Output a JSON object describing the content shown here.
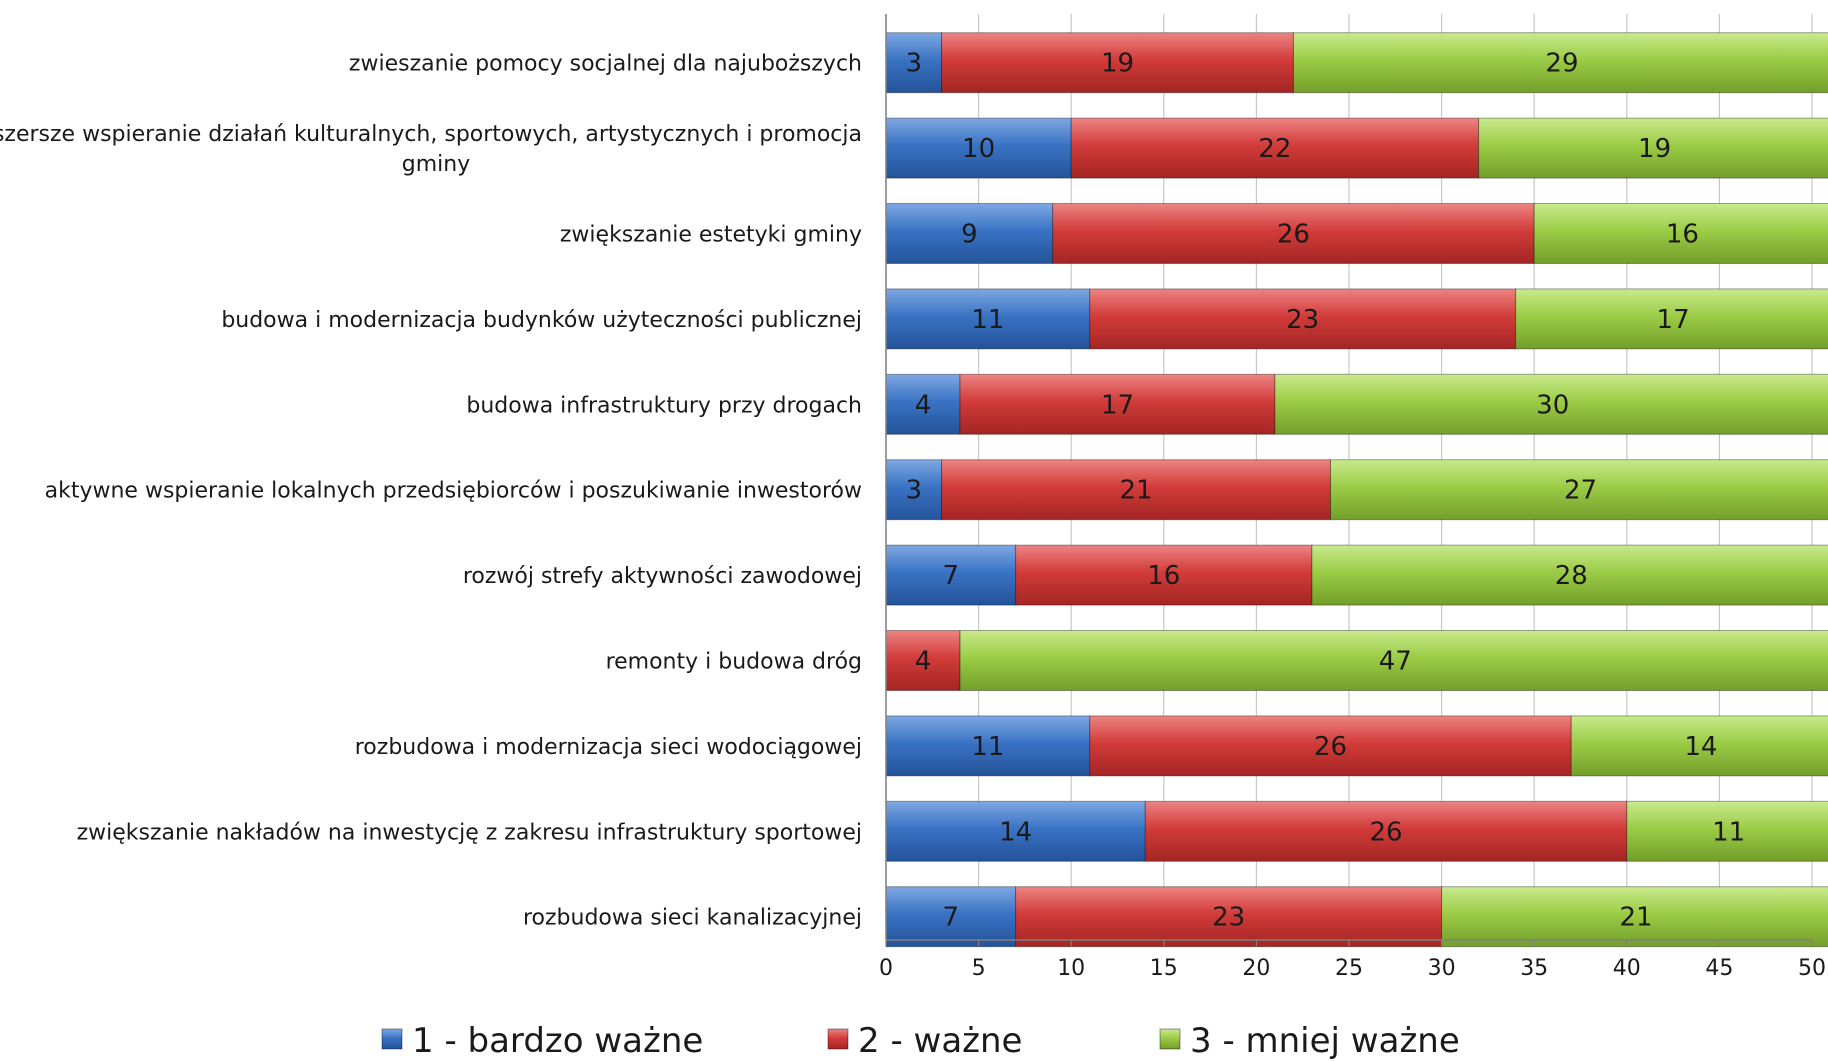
{
  "chart_data": {
    "type": "bar",
    "orientation": "horizontal",
    "stacked": true,
    "xlim": [
      0,
      50
    ],
    "xticks": [
      0,
      5,
      10,
      15,
      20,
      25,
      30,
      35,
      40,
      45,
      50
    ],
    "grid": true,
    "legend_position": "bottom",
    "categories": [
      [
        "zwieszanie pomocy socjalnej dla najuboższych"
      ],
      [
        "szersze wspieranie działań kulturalnych, sportowych, artystycznych i promocja",
        "gminy"
      ],
      [
        "zwiększanie estetyki gminy"
      ],
      [
        "budowa i modernizacja budynków użyteczności publicznej"
      ],
      [
        "budowa infrastruktury przy drogach"
      ],
      [
        "aktywne wspieranie lokalnych przedsiębiorców i poszukiwanie inwestorów"
      ],
      [
        "rozwój strefy aktywności zawodowej"
      ],
      [
        "remonty i budowa dróg"
      ],
      [
        "rozbudowa i modernizacja sieci wodociągowej"
      ],
      [
        "zwiększanie nakładów na inwestycję z zakresu infrastruktury sportowej"
      ],
      [
        "rozbudowa sieci kanalizacyjnej"
      ]
    ],
    "series": [
      {
        "name": "1 - bardzo ważne",
        "color": "#3a73c4",
        "values": [
          3,
          10,
          9,
          11,
          4,
          3,
          7,
          0,
          11,
          14,
          7
        ]
      },
      {
        "name": "2 - ważne",
        "color": "#d23c3a",
        "values": [
          19,
          22,
          26,
          23,
          17,
          21,
          16,
          4,
          26,
          26,
          23
        ]
      },
      {
        "name": "3 - mniej ważne",
        "color": "#9ccc46",
        "values": [
          29,
          19,
          16,
          17,
          30,
          27,
          28,
          47,
          14,
          11,
          21
        ]
      }
    ]
  }
}
